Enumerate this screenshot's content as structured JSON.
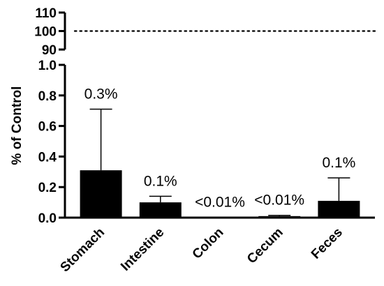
{
  "chart_data": {
    "type": "bar",
    "ylabel": "% of Control",
    "categories": [
      "Stomach",
      "Intestine",
      "Colon",
      "Cecum",
      "Feces"
    ],
    "values": [
      0.31,
      0.1,
      0.003,
      0.01,
      0.11
    ],
    "error_upper": [
      0.71,
      0.14,
      0.003,
      0.015,
      0.26
    ],
    "data_labels": [
      "0.3%",
      "0.1%",
      "<0.01%",
      "<0.01%",
      "0.1%"
    ],
    "y_axis_lower": {
      "ylim": [
        0,
        1.0
      ],
      "ticks": [
        0.0,
        0.2,
        0.4,
        0.6,
        0.8,
        1.0
      ],
      "tick_labels": [
        "0.0",
        "0.2",
        "0.4",
        "0.6",
        "0.8",
        "1.0"
      ]
    },
    "y_axis_upper": {
      "ylim": [
        90,
        110
      ],
      "ticks": [
        90,
        100,
        110
      ],
      "tick_labels": [
        "90",
        "100",
        "110"
      ]
    },
    "reference_line": {
      "value": 100,
      "style": "dotted"
    },
    "bar_color": "#000000",
    "grid": false,
    "legend": "none"
  }
}
